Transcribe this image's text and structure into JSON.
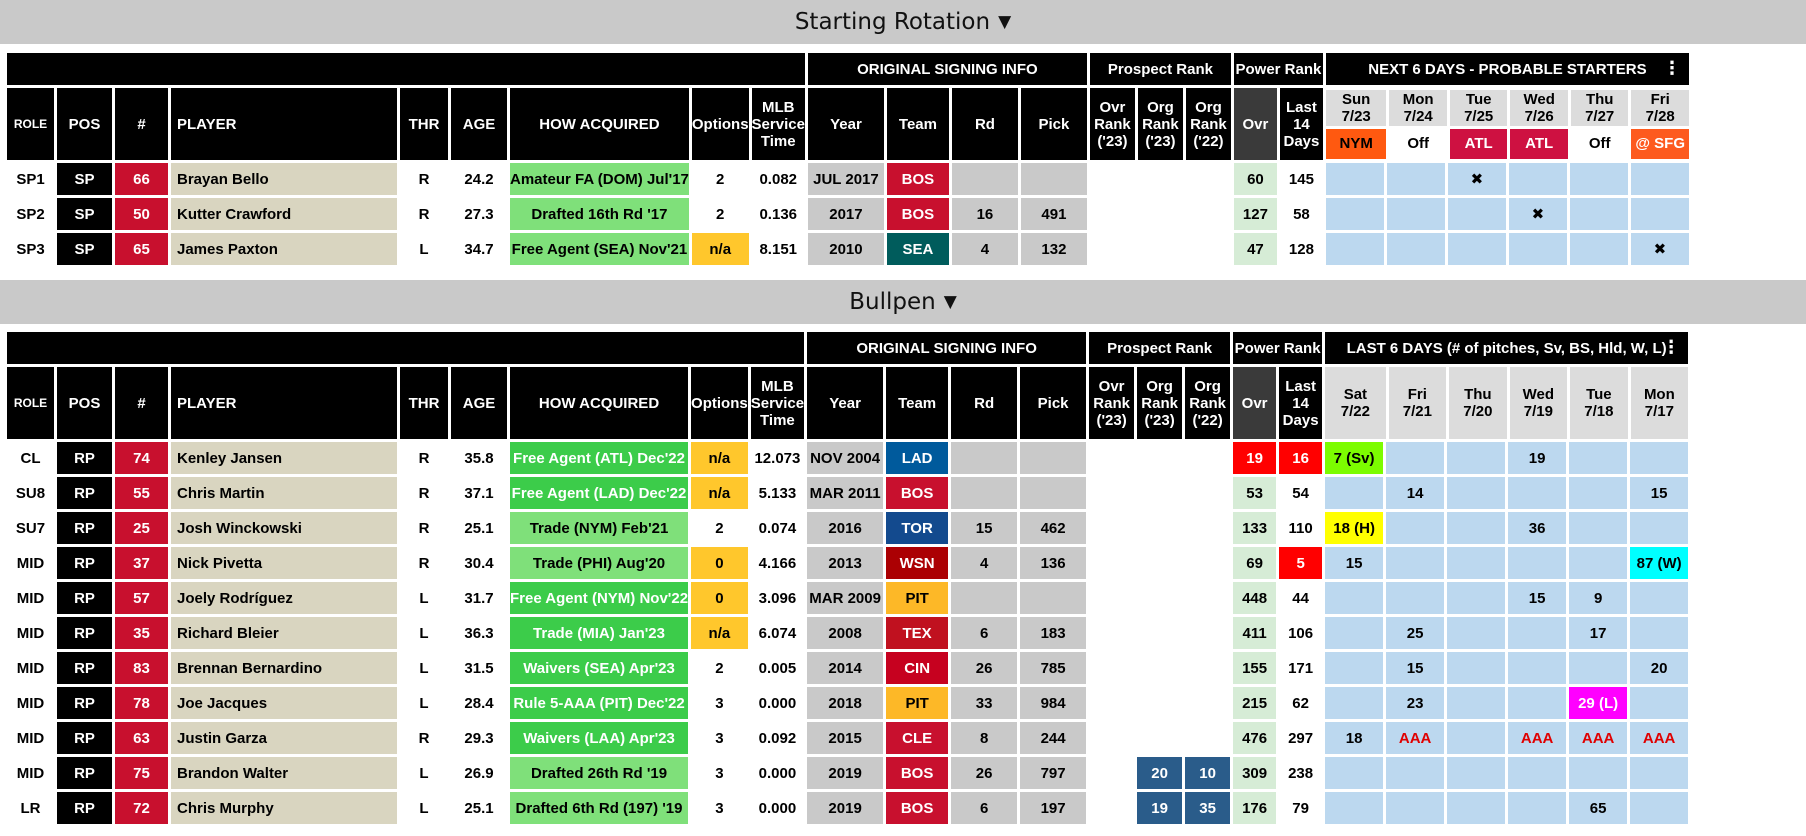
{
  "starting": {
    "title": "Starting Rotation",
    "arrow": "▼",
    "group_headers": {
      "signing": "ORIGINAL SIGNING INFO",
      "prospect": "Prospect Rank",
      "power": "Power Rank",
      "next": "NEXT 6 DAYS - PROBABLE STARTERS",
      "menu": "⋮"
    },
    "columns": {
      "role": "ROLE",
      "pos": "POS",
      "num": "#",
      "player": "PLAYER",
      "thr": "THR",
      "age": "AGE",
      "how": "HOW ACQUIRED",
      "options": "Options",
      "mlb1": "MLB",
      "mlb2": "Service",
      "mlb3": "Time",
      "year": "Year",
      "team": "Team",
      "rd": "Rd",
      "pick": "Pick",
      "ovr1": "Ovr",
      "ovr2": "Rank",
      "ovr3": "('23)",
      "org23_1": "Org",
      "org23_2": "Rank",
      "org23_3": "('23)",
      "org22_1": "Org",
      "org22_2": "Rank",
      "org22_3": "('22)",
      "pow": "Ovr",
      "last1": "Last",
      "last2": "14",
      "last3": "Days"
    },
    "days": [
      {
        "d": "Sun",
        "date": "7/23",
        "opp": "NYM"
      },
      {
        "d": "Mon",
        "date": "7/24",
        "opp": "Off"
      },
      {
        "d": "Tue",
        "date": "7/25",
        "opp": "ATL"
      },
      {
        "d": "Wed",
        "date": "7/26",
        "opp": "ATL"
      },
      {
        "d": "Thu",
        "date": "7/27",
        "opp": "Off"
      },
      {
        "d": "Fri",
        "date": "7/28",
        "opp": "@ SFG"
      }
    ],
    "rows": [
      {
        "role": "SP1",
        "pos": "SP",
        "num": "66",
        "player": "Brayan Bello",
        "thr": "R",
        "age": "24.2",
        "how": "Amateur FA (DOM) Jul'17",
        "options": "2",
        "mlb": "0.082",
        "year": "JUL 2017",
        "team": "BOS",
        "rd": "",
        "pick": "",
        "ovr": "",
        "org23": "",
        "org22": "",
        "pow": "60",
        "last14": "145",
        "sched": [
          "",
          "",
          "✖",
          "",
          "",
          ""
        ]
      },
      {
        "role": "SP2",
        "pos": "SP",
        "num": "50",
        "player": "Kutter Crawford",
        "thr": "R",
        "age": "27.3",
        "how": "Drafted 16th Rd '17",
        "options": "2",
        "mlb": "0.136",
        "year": "2017",
        "team": "BOS",
        "rd": "16",
        "pick": "491",
        "ovr": "",
        "org23": "",
        "org22": "",
        "pow": "127",
        "last14": "58",
        "sched": [
          "",
          "",
          "",
          "✖",
          "",
          ""
        ]
      },
      {
        "role": "SP3",
        "pos": "SP",
        "num": "65",
        "player": "James Paxton",
        "thr": "L",
        "age": "34.7",
        "how": "Free Agent (SEA) Nov'21",
        "options": "n/a",
        "mlb": "8.151",
        "year": "2010",
        "team": "SEA",
        "rd": "4",
        "pick": "132",
        "ovr": "",
        "org23": "",
        "org22": "",
        "pow": "47",
        "last14": "128",
        "sched": [
          "",
          "",
          "",
          "",
          "",
          "✖"
        ]
      }
    ]
  },
  "bullpen": {
    "title": "Bullpen",
    "arrow": "▼",
    "group_headers": {
      "signing": "ORIGINAL SIGNING INFO",
      "prospect": "Prospect Rank",
      "power": "Power Rank",
      "last": "LAST 6 DAYS (# of pitches, Sv, BS, Hld, W, L)",
      "menu": "⋮"
    },
    "days": [
      {
        "d": "Sat",
        "date": "7/22"
      },
      {
        "d": "Fri",
        "date": "7/21"
      },
      {
        "d": "Thu",
        "date": "7/20"
      },
      {
        "d": "Wed",
        "date": "7/19"
      },
      {
        "d": "Tue",
        "date": "7/18"
      },
      {
        "d": "Mon",
        "date": "7/17"
      }
    ],
    "rows": [
      {
        "role": "CL",
        "pos": "RP",
        "num": "74",
        "player": "Kenley Jansen",
        "thr": "R",
        "age": "35.8",
        "how": "Free Agent (ATL) Dec'22",
        "options": "n/a",
        "mlb": "12.073",
        "year": "NOV 2004",
        "team": "LAD",
        "rd": "",
        "pick": "",
        "ovr": "",
        "org23": "",
        "org22": "",
        "pow": "19",
        "last14": "16",
        "days": [
          "7 (Sv)",
          "",
          "",
          "19",
          "",
          ""
        ]
      },
      {
        "role": "SU8",
        "pos": "RP",
        "num": "55",
        "player": "Chris Martin",
        "thr": "R",
        "age": "37.1",
        "how": "Free Agent (LAD) Dec'22",
        "options": "n/a",
        "mlb": "5.133",
        "year": "MAR 2011",
        "team": "BOS",
        "rd": "",
        "pick": "",
        "ovr": "",
        "org23": "",
        "org22": "",
        "pow": "53",
        "last14": "54",
        "days": [
          "",
          "14",
          "",
          "",
          "",
          "15"
        ]
      },
      {
        "role": "SU7",
        "pos": "RP",
        "num": "25",
        "player": "Josh Winckowski",
        "thr": "R",
        "age": "25.1",
        "how": "Trade (NYM) Feb'21",
        "options": "2",
        "mlb": "0.074",
        "year": "2016",
        "team": "TOR",
        "rd": "15",
        "pick": "462",
        "ovr": "",
        "org23": "",
        "org22": "",
        "pow": "133",
        "last14": "110",
        "days": [
          "18 (H)",
          "",
          "",
          "36",
          "",
          ""
        ]
      },
      {
        "role": "MID",
        "pos": "RP",
        "num": "37",
        "player": "Nick Pivetta",
        "thr": "R",
        "age": "30.4",
        "how": "Trade (PHI) Aug'20",
        "options": "0",
        "mlb": "4.166",
        "year": "2013",
        "team": "WSN",
        "rd": "4",
        "pick": "136",
        "ovr": "",
        "org23": "",
        "org22": "",
        "pow": "69",
        "last14": "5",
        "days": [
          "15",
          "",
          "",
          "",
          "",
          "87 (W)"
        ]
      },
      {
        "role": "MID",
        "pos": "RP",
        "num": "57",
        "player": "Joely Rodríguez",
        "thr": "L",
        "age": "31.7",
        "how": "Free Agent (NYM) Nov'22",
        "options": "0",
        "mlb": "3.096",
        "year": "MAR 2009",
        "team": "PIT",
        "rd": "",
        "pick": "",
        "ovr": "",
        "org23": "",
        "org22": "",
        "pow": "448",
        "last14": "44",
        "days": [
          "",
          "",
          "",
          "15",
          "9",
          ""
        ]
      },
      {
        "role": "MID",
        "pos": "RP",
        "num": "35",
        "player": "Richard Bleier",
        "thr": "L",
        "age": "36.3",
        "how": "Trade (MIA) Jan'23",
        "options": "n/a",
        "mlb": "6.074",
        "year": "2008",
        "team": "TEX",
        "rd": "6",
        "pick": "183",
        "ovr": "",
        "org23": "",
        "org22": "",
        "pow": "411",
        "last14": "106",
        "days": [
          "",
          "25",
          "",
          "",
          "17",
          ""
        ]
      },
      {
        "role": "MID",
        "pos": "RP",
        "num": "83",
        "player": "Brennan Bernardino",
        "thr": "L",
        "age": "31.5",
        "how": "Waivers (SEA) Apr'23",
        "options": "2",
        "mlb": "0.005",
        "year": "2014",
        "team": "CIN",
        "rd": "26",
        "pick": "785",
        "ovr": "",
        "org23": "",
        "org22": "",
        "pow": "155",
        "last14": "171",
        "days": [
          "",
          "15",
          "",
          "",
          "",
          "20"
        ]
      },
      {
        "role": "MID",
        "pos": "RP",
        "num": "78",
        "player": "Joe Jacques",
        "thr": "L",
        "age": "28.4",
        "how": "Rule 5-AAA (PIT) Dec'22",
        "options": "3",
        "mlb": "0.000",
        "year": "2018",
        "team": "PIT",
        "rd": "33",
        "pick": "984",
        "ovr": "",
        "org23": "",
        "org22": "",
        "pow": "215",
        "last14": "62",
        "days": [
          "",
          "23",
          "",
          "",
          "29 (L)",
          ""
        ]
      },
      {
        "role": "MID",
        "pos": "RP",
        "num": "63",
        "player": "Justin Garza",
        "thr": "R",
        "age": "29.3",
        "how": "Waivers (LAA) Apr'23",
        "options": "3",
        "mlb": "0.092",
        "year": "2015",
        "team": "CLE",
        "rd": "8",
        "pick": "244",
        "ovr": "",
        "org23": "",
        "org22": "",
        "pow": "476",
        "last14": "297",
        "days": [
          "18",
          "AAA",
          "",
          "AAA",
          "AAA",
          "AAA"
        ]
      },
      {
        "role": "MID",
        "pos": "RP",
        "num": "75",
        "player": "Brandon Walter",
        "thr": "L",
        "age": "26.9",
        "how": "Drafted 26th Rd '19",
        "options": "3",
        "mlb": "0.000",
        "year": "2019",
        "team": "BOS",
        "rd": "26",
        "pick": "797",
        "ovr": "",
        "org23": "20",
        "org22": "10",
        "pow": "309",
        "last14": "238",
        "days": [
          "",
          "",
          "",
          "",
          "",
          ""
        ]
      },
      {
        "role": "LR",
        "pos": "RP",
        "num": "72",
        "player": "Chris Murphy",
        "thr": "L",
        "age": "25.1",
        "how": "Drafted 6th Rd (197) '19",
        "options": "3",
        "mlb": "0.000",
        "year": "2019",
        "team": "BOS",
        "rd": "6",
        "pick": "197",
        "ovr": "",
        "org23": "19",
        "org22": "35",
        "pow": "176",
        "last14": "79",
        "days": [
          "",
          "",
          "",
          "",
          "65",
          ""
        ]
      }
    ]
  },
  "colors": {
    "BOS": "#c8102e",
    "SEA": "#005c5c",
    "LAD": "#005a9c",
    "TOR": "#134a8e",
    "WSN": "#ab0003",
    "PIT": "#fdb827",
    "TEX": "#c0111f",
    "CIN": "#c6011f",
    "CLE": "#c8102e"
  }
}
